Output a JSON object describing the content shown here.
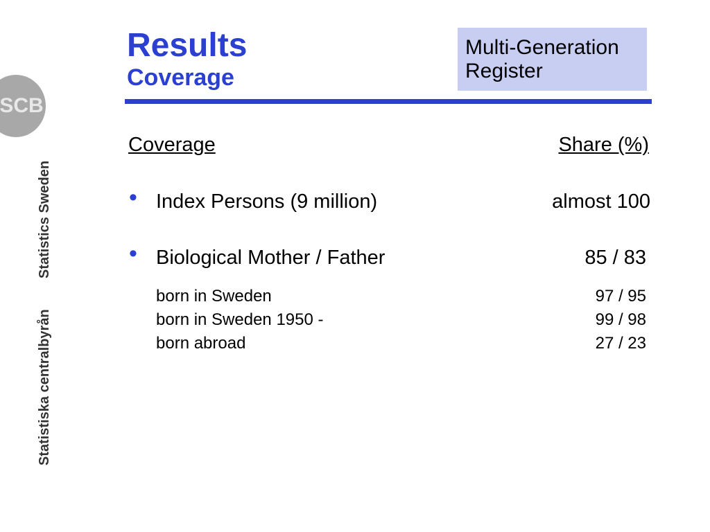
{
  "header": {
    "title": "Results",
    "subtitle": "Coverage",
    "tag": [
      "Multi-Generation",
      "Register"
    ]
  },
  "sidebar": {
    "logo": "SCB",
    "name_en": "Statistics Sweden",
    "name_sv": "Statistiska centralbyrån"
  },
  "table": {
    "columns": [
      "Coverage",
      "Share (%)"
    ],
    "rows": [
      [
        "Index Persons (9 million)",
        "almost 100"
      ],
      [
        "Biological Mother / Father",
        "85 / 83"
      ]
    ],
    "subrows": [
      [
        "born in Sweden",
        "97 / 95"
      ],
      [
        "born in Sweden 1950 -",
        "99 / 98"
      ],
      [
        "born abroad",
        "27 / 23"
      ]
    ]
  }
}
